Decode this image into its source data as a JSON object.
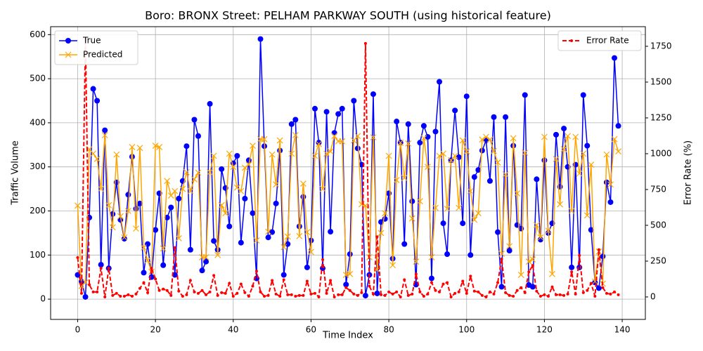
{
  "chart_data": {
    "type": "line",
    "title": "Boro: BRONX Street: PELHAM PARKWAY SOUTH (using historical feature)",
    "xlabel": "Time Index",
    "ylabel": "Traffic Volume",
    "y2label": "Error Rate (%)",
    "x": [
      0,
      1,
      2,
      3,
      4,
      5,
      6,
      7,
      8,
      9,
      10,
      11,
      12,
      13,
      14,
      15,
      16,
      17,
      18,
      19,
      20,
      21,
      22,
      23,
      24,
      25,
      26,
      27,
      28,
      29,
      30,
      31,
      32,
      33,
      34,
      35,
      36,
      37,
      38,
      39,
      40,
      41,
      42,
      43,
      44,
      45,
      46,
      47,
      48,
      49,
      50,
      51,
      52,
      53,
      54,
      55,
      56,
      57,
      58,
      59,
      60,
      61,
      62,
      63,
      64,
      65,
      66,
      67,
      68,
      69,
      70,
      71,
      72,
      73,
      74,
      75,
      76,
      77,
      78,
      79,
      80,
      81,
      82,
      83,
      84,
      85,
      86,
      87,
      88,
      89,
      90,
      91,
      92,
      93,
      94,
      95,
      96,
      97,
      98,
      99,
      100,
      101,
      102,
      103,
      104,
      105,
      106,
      107,
      108,
      109,
      110,
      111,
      112,
      113,
      114,
      115,
      116,
      117,
      118,
      119,
      120,
      121,
      122,
      123,
      124,
      125,
      126,
      127,
      128,
      129,
      130,
      131,
      132,
      133,
      134,
      135,
      136,
      137,
      138,
      139
    ],
    "series": [
      {
        "name": "True",
        "color": "#0000ff",
        "marker": "o",
        "linestyle": "solid",
        "axis": "y",
        "values": [
          55,
          40,
          5,
          185,
          477,
          450,
          78,
          383,
          70,
          193,
          265,
          180,
          137,
          237,
          323,
          205,
          217,
          60,
          125,
          50,
          157,
          240,
          77,
          185,
          208,
          55,
          228,
          268,
          347,
          112,
          407,
          370,
          65,
          85,
          443,
          132,
          112,
          295,
          252,
          165,
          308,
          325,
          128,
          228,
          315,
          195,
          47,
          590,
          347,
          140,
          152,
          217,
          337,
          55,
          125,
          397,
          407,
          165,
          232,
          72,
          133,
          432,
          355,
          70,
          425,
          153,
          377,
          420,
          432,
          33,
          102,
          450,
          342,
          305,
          8,
          55,
          465,
          13,
          175,
          182,
          240,
          92,
          403,
          355,
          125,
          397,
          222,
          33,
          355,
          393,
          368,
          47,
          380,
          493,
          172,
          102,
          315,
          428,
          322,
          172,
          460,
          100,
          277,
          293,
          337,
          360,
          268,
          413,
          152,
          28,
          413,
          110,
          348,
          168,
          160,
          463,
          32,
          28,
          272,
          135,
          315,
          150,
          172,
          373,
          255,
          387,
          300,
          72,
          305,
          72,
          463,
          348,
          157,
          38,
          25,
          97,
          265,
          220,
          547,
          393
        ]
      },
      {
        "name": "Predicted",
        "color": "#ffa500",
        "marker": "x",
        "linestyle": "solid",
        "axis": "y",
        "values": [
          212,
          30,
          38,
          340,
          330,
          318,
          250,
          372,
          213,
          163,
          328,
          188,
          140,
          200,
          345,
          160,
          343,
          117,
          88,
          62,
          348,
          345,
          115,
          268,
          235,
          245,
          138,
          250,
          288,
          245,
          272,
          287,
          95,
          95,
          288,
          325,
          100,
          213,
          195,
          330,
          300,
          253,
          245,
          298,
          305,
          348,
          133,
          363,
          363,
          153,
          328,
          260,
          360,
          118,
          142,
          330,
          372,
          143,
          262,
          152,
          107,
          325,
          352,
          250,
          330,
          335,
          370,
          358,
          358,
          55,
          57,
          360,
          370,
          215,
          212,
          95,
          367,
          67,
          150,
          195,
          325,
          77,
          270,
          355,
          275,
          353,
          183,
          85,
          222,
          365,
          300,
          95,
          207,
          325,
          330,
          205,
          315,
          325,
          207,
          360,
          335,
          245,
          180,
          195,
          362,
          368,
          362,
          336,
          310,
          103,
          283,
          120,
          365,
          240,
          55,
          332,
          85,
          90,
          168,
          140,
          368,
          155,
          57,
          318,
          215,
          340,
          370,
          200,
          368,
          285,
          330,
          190,
          305,
          40,
          108,
          35,
          328,
          260,
          363,
          335
        ]
      },
      {
        "name": "Error Rate",
        "color": "#ff0000",
        "marker": ".",
        "linestyle": "dashed",
        "axis": "y2",
        "values": [
          275,
          25,
          1800,
          85,
          35,
          35,
          200,
          0,
          200,
          10,
          25,
          5,
          5,
          15,
          5,
          20,
          60,
          100,
          30,
          200,
          125,
          45,
          55,
          45,
          10,
          345,
          40,
          5,
          15,
          115,
          35,
          25,
          45,
          15,
          35,
          150,
          10,
          30,
          25,
          95,
          5,
          25,
          90,
          30,
          5,
          75,
          180,
          35,
          5,
          10,
          115,
          20,
          5,
          120,
          15,
          15,
          5,
          10,
          10,
          110,
          20,
          25,
          0,
          260,
          25,
          115,
          0,
          15,
          15,
          65,
          45,
          20,
          10,
          30,
          1770,
          75,
          20,
          420,
          15,
          10,
          35,
          20,
          35,
          0,
          120,
          10,
          20,
          160,
          35,
          5,
          20,
          100,
          45,
          35,
          90,
          100,
          0,
          25,
          35,
          110,
          25,
          145,
          40,
          35,
          10,
          0,
          35,
          20,
          100,
          265,
          30,
          10,
          5,
          45,
          65,
          30,
          175,
          220,
          40,
          5,
          15,
          5,
          70,
          15,
          15,
          10,
          20,
          175,
          20,
          290,
          30,
          45,
          95,
          5,
          330,
          65,
          25,
          20,
          35,
          15
        ]
      }
    ],
    "xlim": [
      -6.95,
      145.95
    ],
    "xticks": [
      0,
      20,
      40,
      60,
      80,
      100,
      120,
      140
    ],
    "ylim": [
      -46,
      618
    ],
    "yticks": [
      0,
      100,
      200,
      300,
      400,
      500,
      600
    ],
    "y2lim": [
      -157,
      1887
    ],
    "y2ticks": [
      0,
      250,
      500,
      750,
      1000,
      1250,
      1500,
      1750
    ],
    "grid": true,
    "legend": "upper left",
    "legend2": "upper right"
  }
}
